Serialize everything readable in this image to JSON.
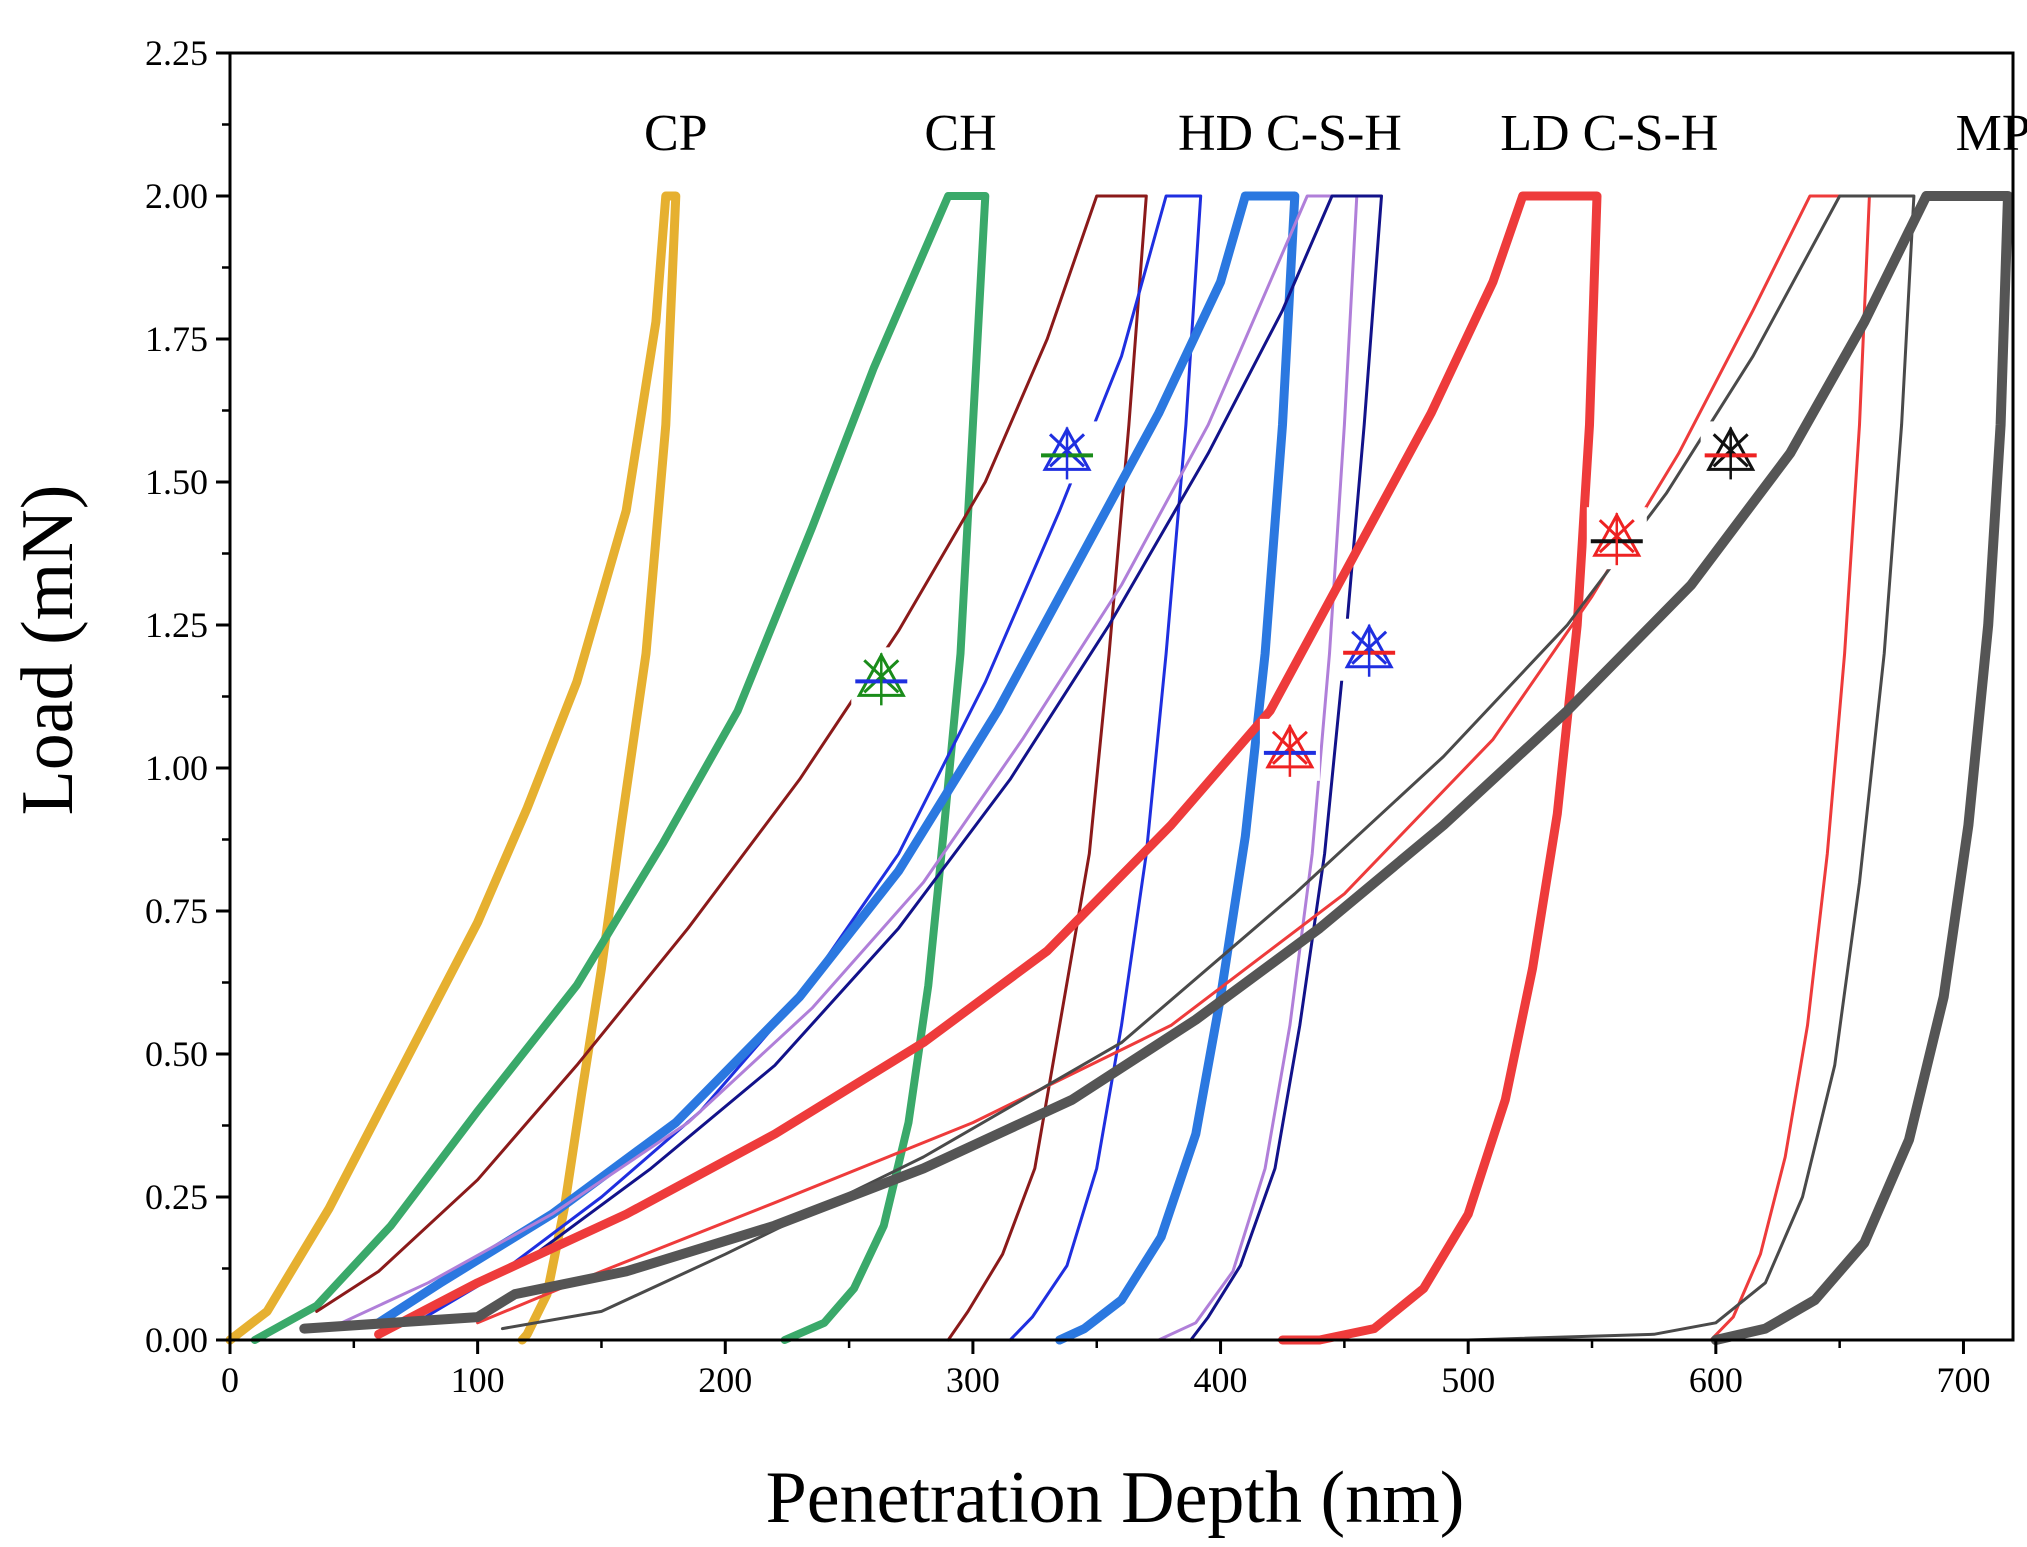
{
  "chart_data": {
    "type": "line",
    "title": "",
    "xlabel": "Penetration Depth (nm)",
    "ylabel": "Load (mN)",
    "xlim": [
      0,
      720
    ],
    "ylim": [
      0,
      2.25
    ],
    "xticks": [
      0,
      100,
      200,
      300,
      400,
      500,
      600,
      700
    ],
    "yticks": [
      0.0,
      0.25,
      0.5,
      0.75,
      1.0,
      1.25,
      1.5,
      1.75,
      2.0,
      2.25
    ],
    "xtick_labels": [
      "0",
      "100",
      "200",
      "300",
      "400",
      "500",
      "600",
      "700"
    ],
    "ytick_labels": [
      "0.00",
      "0.25",
      "0.50",
      "0.75",
      "1.00",
      "1.25",
      "1.50",
      "1.75",
      "2.00",
      "2.25"
    ],
    "grid": false,
    "curve_labels": [
      {
        "text": "CP",
        "x": 180,
        "y": 2.08
      },
      {
        "text": "CH",
        "x": 295,
        "y": 2.08
      },
      {
        "text": "HD C-S-H",
        "x": 428,
        "y": 2.08
      },
      {
        "text": "LD C-S-H",
        "x": 557,
        "y": 2.08
      },
      {
        "text": "MP",
        "x": 712,
        "y": 2.08
      }
    ],
    "series": [
      {
        "name": "CP",
        "color": "#e6b030",
        "width": 9,
        "loading": [
          [
            0,
            0
          ],
          [
            15,
            0.05
          ],
          [
            40,
            0.23
          ],
          [
            70,
            0.48
          ],
          [
            100,
            0.73
          ],
          [
            120,
            0.93
          ],
          [
            140,
            1.15
          ],
          [
            160,
            1.45
          ],
          [
            172,
            1.78
          ],
          [
            176,
            2.0
          ]
        ],
        "hold": [
          [
            176,
            2.0
          ],
          [
            180,
            2.0
          ]
        ],
        "unloading": [
          [
            180,
            2.0
          ],
          [
            176,
            1.6
          ],
          [
            168,
            1.2
          ],
          [
            158,
            0.9
          ],
          [
            150,
            0.65
          ],
          [
            142,
            0.43
          ],
          [
            135,
            0.23
          ],
          [
            128,
            0.08
          ],
          [
            120,
            0.01
          ],
          [
            118,
            0
          ]
        ]
      },
      {
        "name": "CH",
        "color": "#3aa96a",
        "width": 8,
        "loading": [
          [
            10,
            0
          ],
          [
            35,
            0.06
          ],
          [
            65,
            0.2
          ],
          [
            100,
            0.4
          ],
          [
            140,
            0.62
          ],
          [
            175,
            0.87
          ],
          [
            205,
            1.1
          ],
          [
            235,
            1.42
          ],
          [
            260,
            1.7
          ],
          [
            285,
            1.95
          ],
          [
            290,
            2.0
          ]
        ],
        "hold": [
          [
            290,
            2.0
          ],
          [
            305,
            2.0
          ]
        ],
        "unloading": [
          [
            305,
            2.0
          ],
          [
            300,
            1.6
          ],
          [
            295,
            1.2
          ],
          [
            288,
            0.88
          ],
          [
            282,
            0.62
          ],
          [
            274,
            0.38
          ],
          [
            264,
            0.2
          ],
          [
            252,
            0.09
          ],
          [
            240,
            0.03
          ],
          [
            224,
            0
          ]
        ]
      },
      {
        "name": "HD-thin-darkred",
        "color": "#8b1a1a",
        "width": 3,
        "loading": [
          [
            35,
            0.05
          ],
          [
            60,
            0.12
          ],
          [
            100,
            0.28
          ],
          [
            140,
            0.48
          ],
          [
            185,
            0.72
          ],
          [
            230,
            0.98
          ],
          [
            270,
            1.24
          ],
          [
            305,
            1.5
          ],
          [
            330,
            1.75
          ],
          [
            350,
            2.0
          ]
        ],
        "hold": [
          [
            350,
            2.0
          ],
          [
            370,
            2.0
          ]
        ],
        "unloading": [
          [
            370,
            2.0
          ],
          [
            363,
            1.6
          ],
          [
            355,
            1.2
          ],
          [
            347,
            0.85
          ],
          [
            335,
            0.55
          ],
          [
            325,
            0.3
          ],
          [
            312,
            0.15
          ],
          [
            298,
            0.05
          ],
          [
            290,
            0
          ]
        ]
      },
      {
        "name": "HD-thin-blue",
        "color": "#1f2fe0",
        "width": 3,
        "loading": [
          [
            75,
            0.03
          ],
          [
            110,
            0.12
          ],
          [
            150,
            0.25
          ],
          [
            190,
            0.4
          ],
          [
            230,
            0.6
          ],
          [
            270,
            0.85
          ],
          [
            305,
            1.15
          ],
          [
            335,
            1.45
          ],
          [
            360,
            1.72
          ],
          [
            378,
            2.0
          ]
        ],
        "hold": [
          [
            378,
            2.0
          ],
          [
            392,
            2.0
          ]
        ],
        "unloading": [
          [
            392,
            2.0
          ],
          [
            386,
            1.6
          ],
          [
            378,
            1.2
          ],
          [
            370,
            0.85
          ],
          [
            360,
            0.55
          ],
          [
            350,
            0.3
          ],
          [
            338,
            0.13
          ],
          [
            324,
            0.04
          ],
          [
            315,
            0
          ]
        ]
      },
      {
        "name": "HD-thick-blue",
        "color": "#2b78e0",
        "width": 9,
        "loading": [
          [
            60,
            0.03
          ],
          [
            85,
            0.1
          ],
          [
            130,
            0.22
          ],
          [
            180,
            0.38
          ],
          [
            230,
            0.6
          ],
          [
            270,
            0.82
          ],
          [
            310,
            1.1
          ],
          [
            345,
            1.38
          ],
          [
            375,
            1.62
          ],
          [
            400,
            1.85
          ],
          [
            410,
            2.0
          ]
        ],
        "hold": [
          [
            410,
            2.0
          ],
          [
            430,
            2.0
          ]
        ],
        "unloading": [
          [
            430,
            2.0
          ],
          [
            425,
            1.6
          ],
          [
            418,
            1.2
          ],
          [
            410,
            0.88
          ],
          [
            400,
            0.6
          ],
          [
            390,
            0.36
          ],
          [
            376,
            0.18
          ],
          [
            360,
            0.07
          ],
          [
            345,
            0.02
          ],
          [
            335,
            0
          ]
        ]
      },
      {
        "name": "HD-thin-lilac",
        "color": "#b07fd9",
        "width": 3,
        "loading": [
          [
            40,
            0.02
          ],
          [
            80,
            0.1
          ],
          [
            130,
            0.22
          ],
          [
            185,
            0.38
          ],
          [
            235,
            0.58
          ],
          [
            280,
            0.8
          ],
          [
            320,
            1.05
          ],
          [
            360,
            1.32
          ],
          [
            395,
            1.6
          ],
          [
            420,
            1.85
          ],
          [
            435,
            2.0
          ]
        ],
        "hold": [
          [
            435,
            2.0
          ],
          [
            455,
            2.0
          ]
        ],
        "unloading": [
          [
            455,
            2.0
          ],
          [
            450,
            1.6
          ],
          [
            444,
            1.2
          ],
          [
            437,
            0.85
          ],
          [
            428,
            0.55
          ],
          [
            418,
            0.3
          ],
          [
            405,
            0.12
          ],
          [
            390,
            0.03
          ],
          [
            375,
            0
          ]
        ]
      },
      {
        "name": "HD-thin-navy",
        "color": "#12128a",
        "width": 3,
        "loading": [
          [
            80,
            0.05
          ],
          [
            120,
            0.14
          ],
          [
            170,
            0.3
          ],
          [
            220,
            0.48
          ],
          [
            270,
            0.72
          ],
          [
            315,
            0.98
          ],
          [
            355,
            1.25
          ],
          [
            395,
            1.55
          ],
          [
            425,
            1.8
          ],
          [
            445,
            2.0
          ]
        ],
        "hold": [
          [
            445,
            2.0
          ],
          [
            465,
            2.0
          ]
        ],
        "unloading": [
          [
            465,
            2.0
          ],
          [
            458,
            1.6
          ],
          [
            450,
            1.2
          ],
          [
            442,
            0.85
          ],
          [
            432,
            0.55
          ],
          [
            422,
            0.3
          ],
          [
            408,
            0.13
          ],
          [
            395,
            0.04
          ],
          [
            388,
            0
          ]
        ]
      },
      {
        "name": "LD-thick-red",
        "color": "#ee3b3b",
        "width": 9,
        "loading": [
          [
            60,
            0.01
          ],
          [
            100,
            0.1
          ],
          [
            160,
            0.22
          ],
          [
            220,
            0.36
          ],
          [
            280,
            0.52
          ],
          [
            330,
            0.68
          ],
          [
            380,
            0.9
          ],
          [
            420,
            1.1
          ],
          [
            455,
            1.38
          ],
          [
            485,
            1.62
          ],
          [
            510,
            1.85
          ],
          [
            522,
            2.0
          ]
        ],
        "hold": [
          [
            522,
            2.0
          ],
          [
            552,
            2.0
          ]
        ],
        "unloading": [
          [
            552,
            2.0
          ],
          [
            549,
            1.6
          ],
          [
            544,
            1.25
          ],
          [
            536,
            0.92
          ],
          [
            526,
            0.65
          ],
          [
            515,
            0.42
          ],
          [
            500,
            0.22
          ],
          [
            482,
            0.09
          ],
          [
            462,
            0.02
          ],
          [
            440,
            0
          ],
          [
            425,
            0
          ]
        ]
      },
      {
        "name": "LD-thin-red",
        "color": "#ee3b3b",
        "width": 3,
        "loading": [
          [
            100,
            0.03
          ],
          [
            150,
            0.12
          ],
          [
            220,
            0.24
          ],
          [
            300,
            0.38
          ],
          [
            380,
            0.55
          ],
          [
            450,
            0.78
          ],
          [
            510,
            1.05
          ],
          [
            550,
            1.3
          ],
          [
            585,
            1.55
          ],
          [
            615,
            1.8
          ],
          [
            638,
            2.0
          ]
        ],
        "hold": [
          [
            638,
            2.0
          ],
          [
            662,
            2.0
          ]
        ],
        "unloading": [
          [
            662,
            2.0
          ],
          [
            658,
            1.6
          ],
          [
            652,
            1.2
          ],
          [
            645,
            0.85
          ],
          [
            637,
            0.55
          ],
          [
            628,
            0.32
          ],
          [
            618,
            0.15
          ],
          [
            607,
            0.04
          ],
          [
            598,
            0
          ]
        ]
      },
      {
        "name": "MP-thin-gray",
        "color": "#4a4a4a",
        "width": 3,
        "loading": [
          [
            110,
            0.02
          ],
          [
            150,
            0.05
          ],
          [
            200,
            0.15
          ],
          [
            280,
            0.32
          ],
          [
            360,
            0.52
          ],
          [
            430,
            0.78
          ],
          [
            490,
            1.02
          ],
          [
            540,
            1.25
          ],
          [
            580,
            1.48
          ],
          [
            615,
            1.72
          ],
          [
            650,
            2.0
          ]
        ],
        "hold": [
          [
            650,
            2.0
          ],
          [
            680,
            2.0
          ]
        ],
        "unloading": [
          [
            680,
            2.0
          ],
          [
            675,
            1.6
          ],
          [
            668,
            1.2
          ],
          [
            658,
            0.8
          ],
          [
            648,
            0.48
          ],
          [
            635,
            0.25
          ],
          [
            620,
            0.1
          ],
          [
            600,
            0.03
          ],
          [
            575,
            0.01
          ],
          [
            500,
            0
          ]
        ]
      },
      {
        "name": "MP-thick-gray",
        "color": "#555555",
        "width": 10,
        "loading": [
          [
            30,
            0.02
          ],
          [
            100,
            0.04
          ],
          [
            115,
            0.08
          ],
          [
            160,
            0.12
          ],
          [
            220,
            0.2
          ],
          [
            280,
            0.3
          ],
          [
            340,
            0.42
          ],
          [
            390,
            0.56
          ],
          [
            440,
            0.72
          ],
          [
            490,
            0.9
          ],
          [
            540,
            1.1
          ],
          [
            590,
            1.32
          ],
          [
            630,
            1.55
          ],
          [
            660,
            1.78
          ],
          [
            685,
            2.0
          ]
        ],
        "hold": [
          [
            685,
            2.0
          ],
          [
            718,
            2.0
          ]
        ],
        "unloading": [
          [
            718,
            2.0
          ],
          [
            715,
            1.6
          ],
          [
            710,
            1.25
          ],
          [
            702,
            0.9
          ],
          [
            692,
            0.6
          ],
          [
            678,
            0.35
          ],
          [
            660,
            0.17
          ],
          [
            640,
            0.07
          ],
          [
            620,
            0.02
          ],
          [
            600,
            0
          ]
        ]
      }
    ],
    "markers": [
      {
        "x": 263,
        "y": 1.155,
        "tri": "#1a8c1a",
        "cross": "#1a8c1a",
        "bar": "#1f2fe0"
      },
      {
        "x": 338,
        "y": 1.55,
        "tri": "#1f2fe0",
        "cross": "#1f2fe0",
        "bar": "#1a8c1a"
      },
      {
        "x": 428,
        "y": 1.03,
        "tri": "#ee2222",
        "cross": "#ee2222",
        "bar": "#1f2fe0"
      },
      {
        "x": 460,
        "y": 1.205,
        "tri": "#1f2fe0",
        "cross": "#1f2fe0",
        "bar": "#ee2222"
      },
      {
        "x": 560,
        "y": 1.4,
        "tri": "#ee2222",
        "cross": "#ee2222",
        "bar": "#111111"
      },
      {
        "x": 606,
        "y": 1.55,
        "tri": "#111111",
        "cross": "#111111",
        "bar": "#ee2222"
      }
    ]
  }
}
